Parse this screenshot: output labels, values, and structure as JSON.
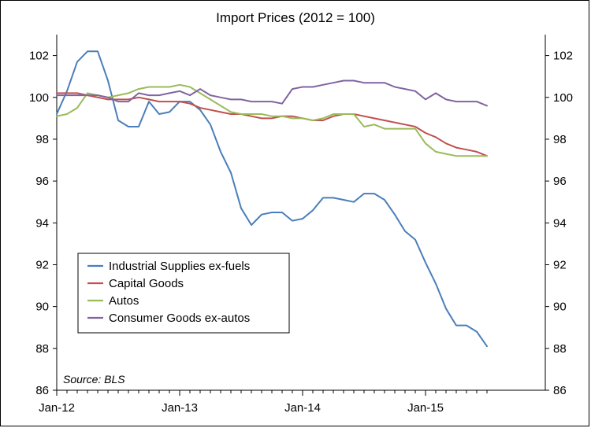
{
  "chart_data": {
    "type": "line",
    "title": "Import Prices (2012 = 100)",
    "x_labels": [
      "Jan-12",
      "Jan-13",
      "Jan-14",
      "Jan-15"
    ],
    "x_label_index": [
      0,
      12,
      24,
      36
    ],
    "x_count": 43,
    "ylim": [
      86,
      103
    ],
    "y_ticks": [
      86,
      88,
      90,
      92,
      94,
      96,
      98,
      100,
      102
    ],
    "y_axis_right": true,
    "grid": false,
    "legend_placement": "bottom-left",
    "annotation": "Source: BLS",
    "series": [
      {
        "name": "Industrial Supplies ex-fuels",
        "color": "#4a7ebb",
        "values": [
          99.2,
          100.3,
          101.7,
          102.2,
          102.2,
          100.8,
          98.9,
          98.6,
          98.6,
          99.8,
          99.2,
          99.3,
          99.8,
          99.8,
          99.4,
          98.7,
          97.4,
          96.4,
          94.7,
          93.9,
          94.4,
          94.5,
          94.5,
          94.1,
          94.2,
          94.6,
          95.2,
          95.2,
          95.1,
          95.0,
          95.4,
          95.4,
          95.1,
          94.4,
          93.6,
          93.2,
          92.1,
          91.1,
          89.9,
          89.1,
          89.1,
          88.8,
          88.1
        ]
      },
      {
        "name": "Capital Goods",
        "color": "#c0504d",
        "values": [
          100.2,
          100.2,
          100.2,
          100.1,
          100.0,
          99.9,
          99.9,
          99.9,
          100.0,
          99.9,
          99.8,
          99.8,
          99.8,
          99.7,
          99.5,
          99.4,
          99.3,
          99.2,
          99.2,
          99.1,
          99.0,
          99.0,
          99.1,
          99.1,
          99.0,
          98.9,
          98.9,
          99.1,
          99.2,
          99.2,
          99.1,
          99.0,
          98.9,
          98.8,
          98.7,
          98.6,
          98.3,
          98.1,
          97.8,
          97.6,
          97.5,
          97.4,
          97.2
        ]
      },
      {
        "name": "Autos",
        "color": "#9bbb59",
        "values": [
          99.1,
          99.2,
          99.5,
          100.2,
          100.1,
          100.0,
          100.1,
          100.2,
          100.4,
          100.5,
          100.5,
          100.5,
          100.6,
          100.5,
          100.2,
          99.9,
          99.6,
          99.3,
          99.2,
          99.2,
          99.2,
          99.1,
          99.1,
          99.0,
          99.0,
          98.9,
          99.0,
          99.2,
          99.2,
          99.2,
          98.6,
          98.7,
          98.5,
          98.5,
          98.5,
          98.5,
          97.8,
          97.4,
          97.3,
          97.2,
          97.2,
          97.2,
          97.2
        ]
      },
      {
        "name": "Consumer Goods ex-autos",
        "color": "#8064a2",
        "values": [
          100.1,
          100.1,
          100.1,
          100.1,
          100.1,
          100.0,
          99.8,
          99.8,
          100.2,
          100.1,
          100.1,
          100.2,
          100.3,
          100.1,
          100.4,
          100.1,
          100.0,
          99.9,
          99.9,
          99.8,
          99.8,
          99.8,
          99.7,
          100.4,
          100.5,
          100.5,
          100.6,
          100.7,
          100.8,
          100.8,
          100.7,
          100.7,
          100.7,
          100.5,
          100.4,
          100.3,
          99.9,
          100.2,
          99.9,
          99.8,
          99.8,
          99.8,
          99.6
        ]
      }
    ]
  }
}
